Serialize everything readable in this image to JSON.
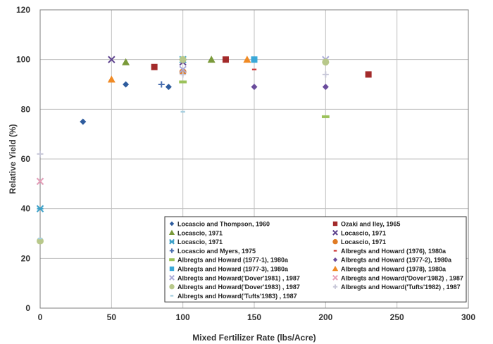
{
  "chart_data": {
    "type": "scatter",
    "title": "",
    "xlabel": "Mixed Fertilizer Rate (lbs/Acre)",
    "ylabel": "Relative Yield (%)",
    "xlim": [
      0,
      300
    ],
    "ylim": [
      0,
      120
    ],
    "xticks": [
      0,
      50,
      100,
      150,
      200,
      250,
      300
    ],
    "yticks": [
      0,
      20,
      40,
      60,
      80,
      100,
      120
    ],
    "grid": true,
    "legend_position": "bottom-right",
    "series": [
      {
        "name": "Locascio and Thompson, 1960",
        "marker": "diamond",
        "color": "#2E5C9E",
        "points": [
          [
            30,
            75
          ],
          [
            60,
            90
          ],
          [
            90,
            89
          ]
        ]
      },
      {
        "name": "Ozaki and Iley, 1965",
        "marker": "square",
        "color": "#A32A2A",
        "points": [
          [
            80,
            97
          ],
          [
            130,
            100
          ],
          [
            230,
            94
          ]
        ]
      },
      {
        "name": "Locascio, 1971",
        "marker": "triangle",
        "color": "#7A9A3A",
        "points": [
          [
            60,
            99
          ],
          [
            120,
            100
          ]
        ]
      },
      {
        "name": "Locascio, 1971",
        "marker": "x",
        "color": "#5B3F8C",
        "points": [
          [
            50,
            100
          ],
          [
            100,
            99
          ]
        ]
      },
      {
        "name": "Locascio, 1971",
        "marker": "xstar",
        "color": "#3AA0C8",
        "points": [
          [
            0,
            40
          ],
          [
            100,
            100
          ]
        ]
      },
      {
        "name": "Locascio, 1971",
        "marker": "circle",
        "color": "#E07B24",
        "points": [
          [
            100,
            95
          ]
        ]
      },
      {
        "name": "Locascio and Myers, 1975",
        "marker": "plus",
        "color": "#4A6FB0",
        "points": [
          [
            85,
            90
          ]
        ]
      },
      {
        "name": "Albregts and Howard (1976), 1980a",
        "marker": "dash",
        "color": "#D04040",
        "points": [
          [
            150,
            96
          ]
        ]
      },
      {
        "name": "Albregts and Howard (1977-1), 1980a",
        "marker": "bar",
        "color": "#9BC25A",
        "points": [
          [
            100,
            91
          ],
          [
            200,
            77
          ]
        ]
      },
      {
        "name": "Albregts and Howard (1977-2), 1980a",
        "marker": "diamond",
        "color": "#6A4C9C",
        "points": [
          [
            150,
            89
          ],
          [
            200,
            89
          ]
        ]
      },
      {
        "name": "Albregts and Howard (1977-3), 1980a",
        "marker": "square",
        "color": "#3AA8D8",
        "points": [
          [
            150,
            100
          ]
        ]
      },
      {
        "name": "Albregts and Howard (1978), 1980a",
        "marker": "triangle",
        "color": "#F08A24",
        "points": [
          [
            50,
            92
          ],
          [
            145,
            100
          ]
        ]
      },
      {
        "name": "Albregts and Howard('Dover'1981) , 1987",
        "marker": "x",
        "color": "#A9A9D8",
        "points": [
          [
            0,
            51
          ],
          [
            100,
            96
          ],
          [
            200,
            100
          ]
        ]
      },
      {
        "name": "Albregts and Howard('Dover'1982) , 1987",
        "marker": "x",
        "color": "#E8A0B8",
        "points": [
          [
            0,
            51
          ]
        ]
      },
      {
        "name": "Albregts and Howard('Dover'1983) , 1987",
        "marker": "circle",
        "color": "#B8C88A",
        "points": [
          [
            0,
            27
          ],
          [
            100,
            100
          ],
          [
            200,
            99
          ]
        ]
      },
      {
        "name": "Albregts and Howard('Tufts'1982) , 1987",
        "marker": "plus",
        "color": "#C8C8D8",
        "points": [
          [
            0,
            62
          ],
          [
            100,
            94
          ],
          [
            200,
            94
          ]
        ]
      },
      {
        "name": "Albregts and Howard('Tufts'1983) , 1987",
        "marker": "dash",
        "color": "#A8D0E0",
        "points": [
          [
            0,
            28
          ],
          [
            100,
            79
          ]
        ]
      }
    ]
  }
}
